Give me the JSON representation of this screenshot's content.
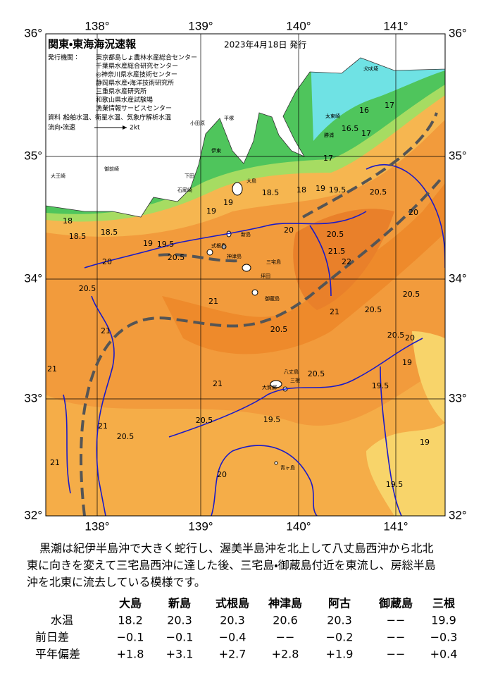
{
  "header": {
    "title": "関東・東海海況速報",
    "date": "2023年4月18日 発行"
  },
  "issuers": {
    "label": "発行機関：",
    "names": [
      "東京都島しょ農林水産総合センター",
      "千葉県水産総合研究センター",
      "◎神奈川県水産技術センター",
      "静岡県水産・海洋技術研究所",
      "三重県水産研究所",
      "和歌山県水産試験場",
      "漁業情報サービスセンター"
    ],
    "materials_label": "資料：",
    "materials": "船舶水温、衛星水温、気象庁解析水温",
    "flow_label": "流向・流速",
    "flow_unit": "2kt"
  },
  "axes": {
    "lon": [
      "138°",
      "139°",
      "140°",
      "141°"
    ],
    "lat": [
      "36°",
      "35°",
      "34°",
      "33°",
      "32°"
    ]
  },
  "map_labels": {
    "isotherms": [
      "17",
      "16",
      "16.5",
      "17",
      "18",
      "18.5",
      "19",
      "19",
      "18.5",
      "19.5",
      "20.5",
      "20",
      "18",
      "18.5",
      "19",
      "19.5",
      "20.5",
      "20",
      "20",
      "20.5",
      "21.5",
      "22",
      "20.5",
      "21",
      "20.5",
      "21",
      "20.5",
      "20.5",
      "20.5",
      "20",
      "21",
      "21",
      "21",
      "20.5",
      "19.5",
      "20.5",
      "19.5",
      "19",
      "21",
      "20.5",
      "21",
      "20",
      "19.5",
      "19",
      "17",
      "19"
    ],
    "places": [
      "大島",
      "新島",
      "式根島",
      "神津島",
      "三宅島",
      "坪田",
      "御蔵島",
      "八丈島",
      "三根",
      "大賀郷",
      "青ヶ島",
      "犬吠埼",
      "太東崎",
      "勝浦",
      "小田原",
      "平塚",
      "伊東",
      "下田",
      "石廊崎",
      "御前崎",
      "大王崎"
    ]
  },
  "description": [
    "黒潮は紀伊半島沖で大きく蛇行し、渥美半島沖を北上して八丈島西沖から北北",
    "東に向きを変えて三宅島西沖に達した後、三宅島・御蔵島付近を東流し、房総半島",
    "沖を北東に流去している模様です。"
  ],
  "table": {
    "columns": [
      "大島",
      "新島",
      "式根島",
      "神津島",
      "阿古",
      "御蔵島",
      "三根"
    ],
    "rows": [
      {
        "label": "水温",
        "cells": [
          "18.2",
          "20.3",
          "20.3",
          "20.6",
          "20.3",
          "−−",
          "19.9"
        ]
      },
      {
        "label": "前日差",
        "cells": [
          "−0.1",
          "−0.1",
          "−0.4",
          "−−",
          "−0.2",
          "−−",
          "−0.3"
        ]
      },
      {
        "label": "平年偏差",
        "cells": [
          "+1.8",
          "+3.1",
          "+2.7",
          "+2.8",
          "+1.9",
          "−−",
          "+0.4"
        ]
      }
    ]
  }
}
